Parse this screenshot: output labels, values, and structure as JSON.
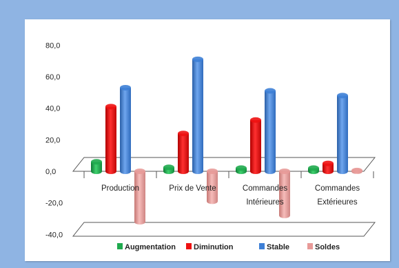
{
  "chart_data": {
    "type": "bar",
    "categories": [
      [
        "Production"
      ],
      [
        "Prix de Vente"
      ],
      [
        "Commandes",
        "Intérieures"
      ],
      [
        "Commandes",
        "Extérieures"
      ]
    ],
    "series": [
      {
        "name": "Augmentation",
        "color": "#1faa4e",
        "values": [
          6.0,
          2.5,
          2.0,
          2.0
        ]
      },
      {
        "name": "Diminution",
        "color": "#ee1111",
        "values": [
          41.0,
          24.0,
          32.5,
          5.0
        ]
      },
      {
        "name": "Stable",
        "color": "#3d7fd6",
        "values": [
          53.0,
          71.0,
          51.0,
          48.0
        ]
      },
      {
        "name": "Soldes",
        "color": "#e89a98",
        "values": [
          -32.0,
          -19.0,
          -28.0,
          0.5
        ]
      }
    ],
    "yticks": [
      "80,0",
      "60,0",
      "40,0",
      "20,0",
      "0,0",
      "-20,0",
      "-40,0"
    ],
    "ylim": [
      -40,
      80
    ],
    "legend_position": "bottom"
  }
}
